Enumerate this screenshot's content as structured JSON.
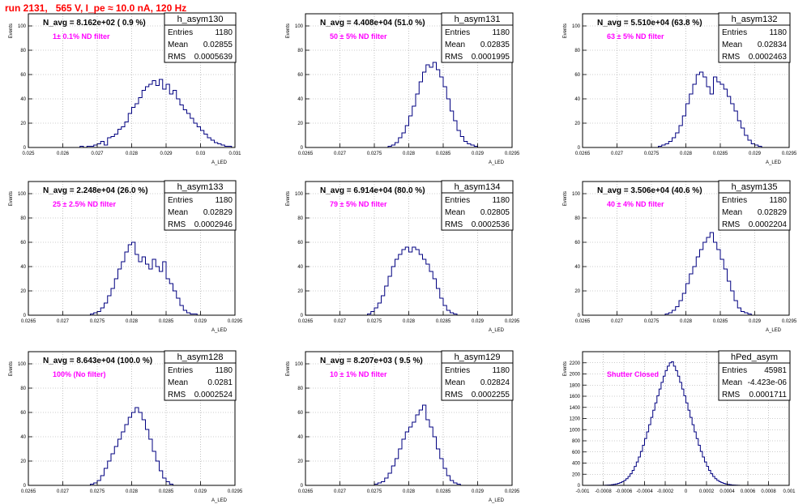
{
  "page_title": "run 2131,   565 V, I_pe ≈ 10.0 nA, 120 Hz",
  "colors": {
    "title": "#ff0000",
    "annotation": "#ff00ff",
    "histogram": "#000080",
    "frame": "#000000",
    "grid": "#999999"
  },
  "chart_data": [
    {
      "type": "bar",
      "name": "h_asym130",
      "navg": "N_avg = 8.162e+02 ( 0.9 %)",
      "filter": "1± 0.1% ND filter",
      "stats": {
        "entries": "1180",
        "mean": "0.02855",
        "rms": "0.0005639"
      },
      "ylabel": "Events",
      "xlabel": "A_LED",
      "grid": true,
      "legend": "top-right",
      "xlim": [
        0.025,
        0.031
      ],
      "ylim": [
        0,
        110
      ],
      "xticks": [
        "0.025",
        "0.026",
        "0.027",
        "0.028",
        "0.029",
        "0.03",
        "0.031"
      ],
      "yticks": [
        "0",
        "20",
        "40",
        "60",
        "80",
        "100"
      ],
      "bins": {
        "start": 0.0265,
        "width": 0.0001
      },
      "values": [
        1,
        0,
        1,
        1,
        2,
        3,
        5,
        2,
        8,
        9,
        11,
        15,
        17,
        21,
        28,
        33,
        36,
        41,
        47,
        50,
        52,
        55,
        51,
        56,
        48,
        52,
        44,
        47,
        40,
        35,
        31,
        28,
        24,
        20,
        17,
        14,
        11,
        8,
        6,
        4,
        3,
        2,
        1,
        1
      ]
    },
    {
      "type": "bar",
      "name": "h_asym131",
      "navg": "N_avg = 4.408e+04 (51.0 %)",
      "filter": "50 ± 5% ND filter",
      "stats": {
        "entries": "1180",
        "mean": "0.02835",
        "rms": "0.0001995"
      },
      "ylabel": "Events",
      "xlabel": "A_LED",
      "grid": true,
      "legend": "top-right",
      "xlim": [
        0.0265,
        0.0295
      ],
      "ylim": [
        0,
        110
      ],
      "xticks": [
        "0.0265",
        "0.027",
        "0.0275",
        "0.028",
        "0.0285",
        "0.029",
        "0.0295"
      ],
      "yticks": [
        "0",
        "20",
        "40",
        "60",
        "80",
        "100"
      ],
      "bins": {
        "start": 0.0277,
        "width": 5e-05
      },
      "values": [
        1,
        2,
        4,
        8,
        12,
        18,
        26,
        34,
        44,
        54,
        62,
        68,
        66,
        70,
        64,
        58,
        50,
        40,
        30,
        22,
        14,
        9,
        5,
        3,
        2,
        1
      ]
    },
    {
      "type": "bar",
      "name": "h_asym132",
      "navg": "N_avg = 5.510e+04 (63.8 %)",
      "filter": "63 ± 5% ND filter",
      "stats": {
        "entries": "1180",
        "mean": "0.02834",
        "rms": "0.0002463"
      },
      "ylabel": "Events",
      "xlabel": "A_LED",
      "grid": true,
      "legend": "top-right",
      "xlim": [
        0.0265,
        0.0295
      ],
      "ylim": [
        0,
        110
      ],
      "xticks": [
        "0.0265",
        "0.027",
        "0.0275",
        "0.028",
        "0.0285",
        "0.029",
        "0.0295"
      ],
      "yticks": [
        "0",
        "20",
        "40",
        "60",
        "80",
        "100"
      ],
      "bins": {
        "start": 0.0276,
        "width": 5e-05
      },
      "values": [
        1,
        2,
        3,
        5,
        8,
        12,
        18,
        26,
        36,
        44,
        52,
        60,
        62,
        58,
        50,
        44,
        58,
        54,
        52,
        48,
        42,
        36,
        30,
        22,
        16,
        10,
        6,
        3,
        2,
        1
      ]
    },
    {
      "type": "bar",
      "name": "h_asym133",
      "navg": "N_avg = 2.248e+04 (26.0 %)",
      "filter": "25 ± 2.5% ND filter",
      "stats": {
        "entries": "1180",
        "mean": "0.02829",
        "rms": "0.0002946"
      },
      "ylabel": "Events",
      "xlabel": "A_LED",
      "grid": true,
      "legend": "top-right",
      "xlim": [
        0.0265,
        0.0295
      ],
      "ylim": [
        0,
        110
      ],
      "xticks": [
        "0.0265",
        "0.027",
        "0.0275",
        "0.028",
        "0.0285",
        "0.029",
        "0.0295"
      ],
      "yticks": [
        "0",
        "20",
        "40",
        "60",
        "80",
        "100"
      ],
      "bins": {
        "start": 0.0274,
        "width": 5e-05
      },
      "values": [
        1,
        2,
        3,
        6,
        10,
        16,
        22,
        30,
        38,
        44,
        52,
        58,
        60,
        50,
        44,
        48,
        42,
        38,
        46,
        40,
        36,
        44,
        30,
        26,
        20,
        14,
        8,
        4,
        2,
        1,
        1
      ]
    },
    {
      "type": "bar",
      "name": "h_asym134",
      "navg": "N_avg = 6.914e+04 (80.0 %)",
      "filter": "79 ± 5% ND filter",
      "stats": {
        "entries": "1180",
        "mean": "0.02805",
        "rms": "0.0002536"
      },
      "ylabel": "Events",
      "xlabel": "A_LED",
      "grid": true,
      "legend": "top-right",
      "xlim": [
        0.0265,
        0.0295
      ],
      "ylim": [
        0,
        110
      ],
      "xticks": [
        "0.0265",
        "0.027",
        "0.0275",
        "0.028",
        "0.0285",
        "0.029",
        "0.0295"
      ],
      "yticks": [
        "0",
        "20",
        "40",
        "60",
        "80",
        "100"
      ],
      "bins": {
        "start": 0.0274,
        "width": 5e-05
      },
      "values": [
        1,
        3,
        6,
        10,
        16,
        24,
        32,
        40,
        46,
        50,
        54,
        56,
        52,
        56,
        54,
        50,
        46,
        42,
        36,
        30,
        22,
        14,
        8,
        4,
        2,
        1
      ]
    },
    {
      "type": "bar",
      "name": "h_asym135",
      "navg": "N_avg = 3.506e+04 (40.6 %)",
      "filter": "40 ± 4% ND filter",
      "stats": {
        "entries": "1180",
        "mean": "0.02829",
        "rms": "0.0002204"
      },
      "ylabel": "Events",
      "xlabel": "A_LED",
      "grid": true,
      "legend": "top-right",
      "xlim": [
        0.0265,
        0.0295
      ],
      "ylim": [
        0,
        110
      ],
      "xticks": [
        "0.0265",
        "0.027",
        "0.0275",
        "0.028",
        "0.0285",
        "0.029",
        "0.0295"
      ],
      "yticks": [
        "0",
        "20",
        "40",
        "60",
        "80",
        "100"
      ],
      "bins": {
        "start": 0.0277,
        "width": 5e-05
      },
      "values": [
        1,
        2,
        4,
        7,
        12,
        18,
        26,
        34,
        40,
        48,
        54,
        60,
        64,
        68,
        60,
        54,
        46,
        38,
        28,
        20,
        12,
        6,
        3,
        2,
        1
      ]
    },
    {
      "type": "bar",
      "name": "h_asym128",
      "navg": "N_avg = 8.643e+04 (100.0 %)",
      "filter": "100% (No filter)",
      "stats": {
        "entries": "1180",
        "mean": "0.0281",
        "rms": "0.0002524"
      },
      "ylabel": "Events",
      "xlabel": "A_LED",
      "grid": true,
      "legend": "top-right",
      "xlim": [
        0.0265,
        0.0295
      ],
      "ylim": [
        0,
        110
      ],
      "xticks": [
        "0.0265",
        "0.027",
        "0.0275",
        "0.028",
        "0.0285",
        "0.029",
        "0.0295"
      ],
      "yticks": [
        "0",
        "20",
        "40",
        "60",
        "80",
        "100"
      ],
      "bins": {
        "start": 0.0274,
        "width": 5e-05
      },
      "values": [
        1,
        2,
        4,
        8,
        14,
        20,
        26,
        32,
        38,
        44,
        50,
        56,
        60,
        64,
        60,
        54,
        46,
        38,
        28,
        20,
        12,
        6,
        3,
        1
      ]
    },
    {
      "type": "bar",
      "name": "h_asym129",
      "navg": "N_avg = 8.207e+03 ( 9.5 %)",
      "filter": "10 ± 1% ND filter",
      "stats": {
        "entries": "1180",
        "mean": "0.02824",
        "rms": "0.0002255"
      },
      "ylabel": "Events",
      "xlabel": "A_LED",
      "grid": true,
      "legend": "top-right",
      "xlim": [
        0.0265,
        0.0295
      ],
      "ylim": [
        0,
        110
      ],
      "xticks": [
        "0.0265",
        "0.027",
        "0.0275",
        "0.028",
        "0.0285",
        "0.029",
        "0.0295"
      ],
      "yticks": [
        "0",
        "20",
        "40",
        "60",
        "80",
        "100"
      ],
      "bins": {
        "start": 0.0275,
        "width": 5e-05
      },
      "values": [
        1,
        2,
        3,
        6,
        10,
        16,
        22,
        30,
        38,
        44,
        48,
        52,
        58,
        62,
        66,
        54,
        48,
        40,
        30,
        22,
        14,
        8,
        4,
        2,
        1
      ]
    },
    {
      "type": "bar",
      "name": "hPed_asym",
      "navg": "",
      "filter": "Shutter Closed",
      "stats": {
        "entries": "45981",
        "mean": "-4.423e-06",
        "rms": "0.0001711"
      },
      "ylabel": "Events",
      "xlabel": "",
      "grid": true,
      "legend": "top-right",
      "xlim": [
        -0.001,
        0.001
      ],
      "ylim": [
        0,
        2400
      ],
      "xticks": [
        "-0.001",
        "-0.0008",
        "-0.0006",
        "-0.0004",
        "-0.0002",
        "0",
        "0.0002",
        "0.0004",
        "0.0006",
        "0.0008",
        "0.001"
      ],
      "yticks": [
        "0",
        "200",
        "400",
        "600",
        "800",
        "1000",
        "1200",
        "1400",
        "1600",
        "1800",
        "2000",
        "2200"
      ],
      "bins": {
        "start": -0.0008,
        "width": 2e-05
      },
      "values": [
        2,
        4,
        6,
        8,
        12,
        18,
        26,
        36,
        50,
        68,
        90,
        120,
        160,
        210,
        270,
        340,
        420,
        510,
        610,
        720,
        840,
        960,
        1090,
        1220,
        1350,
        1480,
        1610,
        1730,
        1850,
        1960,
        2060,
        2140,
        2200,
        2220,
        2140,
        2060,
        1960,
        1850,
        1730,
        1610,
        1480,
        1350,
        1220,
        1090,
        960,
        840,
        720,
        610,
        510,
        420,
        340,
        270,
        210,
        160,
        120,
        90,
        68,
        50,
        36,
        26,
        18,
        12,
        8,
        6,
        4,
        2
      ]
    }
  ]
}
